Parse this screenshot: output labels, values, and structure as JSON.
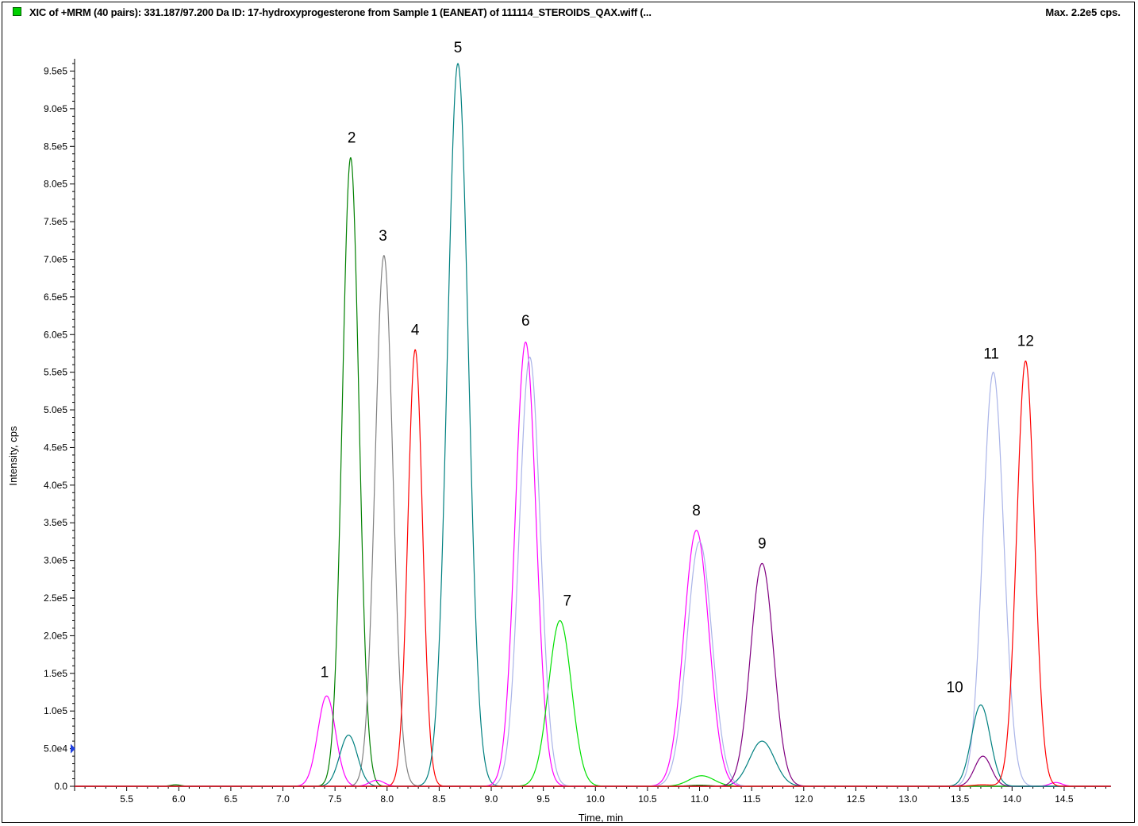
{
  "header": {
    "title": "XIC of +MRM (40 pairs): 331.187/97.200 Da ID: 17-hydroxyprogesterone from Sample 1 (EANEAT) of 111114_STEROIDS_QAX.wiff (...",
    "max": "Max. 2.2e5 cps.",
    "legend_color": "#00d000"
  },
  "chart_data": {
    "type": "line",
    "xlabel": "Time, min",
    "ylabel": "Intensity, cps",
    "xlim": [
      5.0,
      14.95
    ],
    "ylim": [
      0,
      960000
    ],
    "x_ticks": [
      "5.5",
      "6.0",
      "6.5",
      "7.0",
      "7.5",
      "8.0",
      "8.5",
      "9.0",
      "9.5",
      "10.0",
      "10.5",
      "11.0",
      "11.5",
      "12.0",
      "12.5",
      "13.0",
      "13.5",
      "14.0",
      "14.5"
    ],
    "y_ticks": [
      "0.0",
      "5.0e4",
      "1.0e5",
      "1.5e5",
      "2.0e5",
      "2.5e5",
      "3.0e5",
      "3.5e5",
      "4.0e5",
      "4.5e5",
      "5.0e5",
      "5.5e5",
      "6.0e5",
      "6.5e5",
      "7.0e5",
      "7.5e5",
      "8.0e5",
      "8.5e5",
      "9.0e5",
      "9.5e5"
    ],
    "series": [
      {
        "color": "#ff00ff",
        "peaks": [
          {
            "rt": 7.42,
            "height": 120000,
            "width": 0.085
          }
        ]
      },
      {
        "color": "#008000",
        "peaks": [
          {
            "rt": 7.65,
            "height": 835000,
            "width": 0.08
          },
          {
            "rt": 5.97,
            "height": 2000,
            "width": 0.05
          },
          {
            "rt": 11.0,
            "height": 1500,
            "width": 0.1
          }
        ]
      },
      {
        "color": "#808080",
        "peaks": [
          {
            "rt": 7.97,
            "height": 705000,
            "width": 0.085
          }
        ]
      },
      {
        "color": "#ff0000",
        "peaks": [
          {
            "rt": 8.27,
            "height": 580000,
            "width": 0.07
          }
        ]
      },
      {
        "color": "#008080",
        "peaks": [
          {
            "rt": 8.68,
            "height": 960000,
            "width": 0.1
          },
          {
            "rt": 7.63,
            "height": 68000,
            "width": 0.085
          },
          {
            "rt": 11.6,
            "height": 60000,
            "width": 0.12
          }
        ]
      },
      {
        "color": "#ff00ff",
        "peaks": [
          {
            "rt": 9.33,
            "height": 590000,
            "width": 0.1
          },
          {
            "rt": 10.97,
            "height": 340000,
            "width": 0.12
          },
          {
            "rt": 7.9,
            "height": 8000,
            "width": 0.07
          },
          {
            "rt": 14.42,
            "height": 5000,
            "width": 0.06
          }
        ]
      },
      {
        "color": "#00e000",
        "peaks": [
          {
            "rt": 9.66,
            "height": 220000,
            "width": 0.11
          },
          {
            "rt": 11.02,
            "height": 14000,
            "width": 0.12
          }
        ]
      },
      {
        "color": "#aab4e8",
        "peaks": [
          {
            "rt": 9.37,
            "height": 570000,
            "width": 0.1
          },
          {
            "rt": 11.0,
            "height": 325000,
            "width": 0.12
          },
          {
            "rt": 13.82,
            "height": 550000,
            "width": 0.1
          }
        ]
      },
      {
        "color": "#800080",
        "peaks": [
          {
            "rt": 11.6,
            "height": 296000,
            "width": 0.11
          },
          {
            "rt": 13.72,
            "height": 40000,
            "width": 0.08
          }
        ]
      },
      {
        "color": "#008080",
        "peaks": [
          {
            "rt": 13.7,
            "height": 108000,
            "width": 0.09
          }
        ]
      },
      {
        "color": "#ff0000",
        "peaks": [
          {
            "rt": 14.13,
            "height": 565000,
            "width": 0.085
          },
          {
            "rt": 13.72,
            "height": 2000,
            "width": 0.1
          }
        ]
      }
    ],
    "peak_labels": [
      {
        "text": "1",
        "x": 7.4,
        "y": 145000
      },
      {
        "text": "2",
        "x": 7.66,
        "y": 855000
      },
      {
        "text": "3",
        "x": 7.96,
        "y": 725000
      },
      {
        "text": "4",
        "x": 8.27,
        "y": 600000
      },
      {
        "text": "5",
        "x": 8.68,
        "y": 975000
      },
      {
        "text": "6",
        "x": 9.33,
        "y": 612000
      },
      {
        "text": "7",
        "x": 9.73,
        "y": 240000
      },
      {
        "text": "8",
        "x": 10.97,
        "y": 360000
      },
      {
        "text": "9",
        "x": 11.6,
        "y": 316000
      },
      {
        "text": "10",
        "x": 13.45,
        "y": 125000
      },
      {
        "text": "11",
        "x": 13.8,
        "y": 568000
      },
      {
        "text": "12",
        "x": 14.13,
        "y": 585000
      }
    ]
  }
}
